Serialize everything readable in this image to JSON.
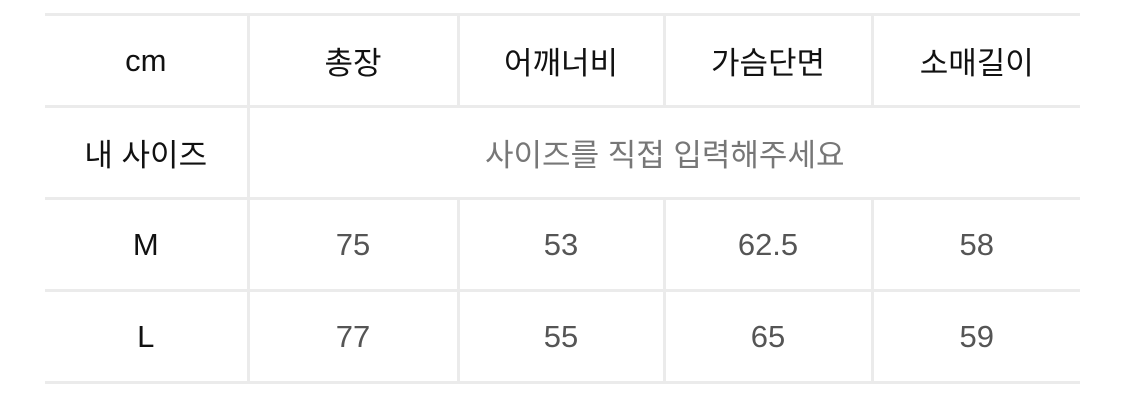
{
  "table": {
    "headers": [
      "cm",
      "총장",
      "어깨너비",
      "가슴단면",
      "소매길이"
    ],
    "my_size": {
      "label": "내 사이즈",
      "placeholder": "사이즈를 직접 입력해주세요"
    },
    "rows": [
      {
        "size": "M",
        "values": [
          "75",
          "53",
          "62.5",
          "58"
        ]
      },
      {
        "size": "L",
        "values": [
          "77",
          "55",
          "65",
          "59"
        ]
      }
    ]
  },
  "colors": {
    "border": "#ebebeb",
    "text": "#111111",
    "value_text": "#555555"
  }
}
